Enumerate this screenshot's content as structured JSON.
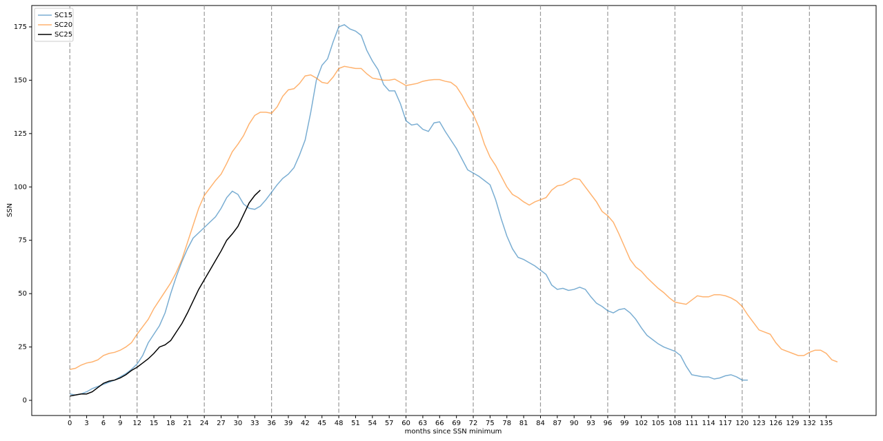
{
  "chart_data": {
    "type": "line",
    "x_label": "months since SSN minimum",
    "y_label": "SSN",
    "x": [
      0,
      1,
      2,
      3,
      4,
      5,
      6,
      7,
      8,
      9,
      10,
      11,
      12,
      13,
      14,
      15,
      16,
      17,
      18,
      19,
      20,
      21,
      22,
      23,
      24,
      25,
      26,
      27,
      28,
      29,
      30,
      31,
      32,
      33,
      34,
      35,
      36,
      37,
      38,
      39,
      40,
      41,
      42,
      43,
      44,
      45,
      46,
      47,
      48,
      49,
      50,
      51,
      52,
      53,
      54,
      55,
      56,
      57,
      58,
      59,
      60,
      61,
      62,
      63,
      64,
      65,
      66,
      67,
      68,
      69,
      70,
      71,
      72,
      73,
      74,
      75,
      76,
      77,
      78,
      79,
      80,
      81,
      82,
      83,
      84,
      85,
      86,
      87,
      88,
      89,
      90,
      91,
      92,
      93,
      94,
      95,
      96,
      97,
      98,
      99,
      100,
      101,
      102,
      103,
      104,
      105,
      106,
      107,
      108,
      109,
      110,
      111,
      112,
      113,
      114,
      115,
      116,
      117,
      118,
      119,
      120,
      121,
      122,
      123,
      124,
      125,
      126,
      127,
      128,
      129,
      130,
      131,
      132,
      133,
      134,
      135,
      136,
      137
    ],
    "series": [
      {
        "name": "SC15",
        "color": "#1f77b4",
        "alpha": 0.6,
        "values": [
          3,
          2.5,
          3,
          4,
          5.5,
          6.5,
          7.5,
          8.5,
          9.5,
          11,
          12.5,
          14.5,
          17,
          21,
          27,
          31,
          35,
          41,
          50,
          58,
          65,
          71,
          76,
          78.5,
          81,
          83.5,
          86,
          90,
          95,
          98,
          96.5,
          92,
          90,
          89.5,
          91,
          94,
          97.5,
          101,
          104,
          106,
          109,
          115,
          122,
          135,
          150,
          157,
          160,
          168,
          175,
          176,
          174,
          173,
          171,
          164,
          159,
          155,
          148,
          145,
          145,
          139,
          131,
          129,
          129.5,
          127,
          126,
          130,
          130.5,
          126,
          122,
          118,
          113,
          108,
          106.5,
          105,
          103,
          101,
          94,
          85,
          77,
          71,
          67,
          66,
          64.5,
          63,
          61,
          59,
          54,
          52,
          52.5,
          51.5,
          52,
          53,
          52,
          48.5,
          45.5,
          44,
          42,
          41,
          42.5,
          43,
          41,
          38,
          34,
          30.5,
          28.5,
          26.5,
          25,
          24,
          23,
          21,
          16,
          12,
          11.5,
          11,
          11,
          10,
          10.5,
          11.5,
          12,
          11,
          9.5,
          9.5,
          null,
          null,
          null,
          null,
          null,
          null,
          null,
          null,
          null,
          null,
          null,
          null,
          null,
          null,
          null,
          null
        ]
      },
      {
        "name": "SC20",
        "color": "#ff7f0e",
        "alpha": 0.6,
        "values": [
          14.5,
          15,
          16.5,
          17.5,
          18,
          19,
          21,
          22,
          22.5,
          23.5,
          25,
          27,
          31,
          34.5,
          38,
          43,
          47,
          51,
          55,
          60,
          66,
          74,
          82,
          90,
          96,
          99.5,
          103,
          106,
          111,
          116.5,
          120,
          124,
          129.5,
          133.5,
          135,
          135,
          134.5,
          137.5,
          142.5,
          145.5,
          146,
          148.5,
          152,
          152.5,
          151,
          149,
          148.5,
          151.5,
          155.5,
          156.5,
          156,
          155.5,
          155.5,
          153,
          151,
          150.5,
          150,
          150,
          150.5,
          149,
          147.5,
          148,
          148.5,
          149.5,
          150,
          150.3,
          150.3,
          149.5,
          149,
          147,
          143,
          138,
          134,
          128,
          120,
          114,
          110,
          105,
          100,
          96.5,
          95,
          93,
          91.5,
          93,
          94,
          95,
          98.5,
          100.5,
          101,
          102.5,
          104,
          103.5,
          100,
          96.5,
          93,
          88.5,
          86.5,
          83.5,
          78,
          72,
          66,
          62.5,
          60.5,
          57.5,
          55,
          52.5,
          50.5,
          48,
          46,
          45.5,
          45,
          47,
          49,
          48.5,
          48.5,
          49.5,
          49.5,
          49,
          48,
          46.5,
          44,
          40,
          36.5,
          33,
          32,
          31,
          27,
          24,
          23,
          22,
          21,
          21,
          22.5,
          23.5,
          23.5,
          22,
          19,
          18
        ]
      },
      {
        "name": "SC25",
        "color": "#000000",
        "alpha": 1,
        "values": [
          2,
          2.5,
          3,
          3,
          4,
          6,
          8,
          9,
          9.5,
          10.5,
          12,
          14,
          15.5,
          17.5,
          19.5,
          22,
          25,
          26,
          28,
          32,
          36,
          41,
          46.5,
          52,
          56.5,
          61,
          65.5,
          70,
          75,
          78,
          81.5,
          87,
          92.5,
          96,
          98.5,
          null,
          null,
          null,
          null,
          null,
          null,
          null,
          null,
          null,
          null,
          null,
          null,
          null,
          null,
          null,
          null,
          null,
          null,
          null,
          null,
          null,
          null,
          null,
          null,
          null,
          null,
          null,
          null,
          null,
          null,
          null,
          null,
          null,
          null,
          null,
          null,
          null,
          null,
          null,
          null,
          null,
          null,
          null,
          null,
          null,
          null,
          null,
          null,
          null,
          null,
          null,
          null,
          null,
          null,
          null,
          null,
          null,
          null,
          null,
          null,
          null,
          null,
          null,
          null,
          null,
          null,
          null,
          null,
          null,
          null,
          null,
          null,
          null,
          null,
          null,
          null,
          null,
          null,
          null,
          null,
          null,
          null,
          null,
          null,
          null,
          null,
          null,
          null,
          null,
          null,
          null,
          null,
          null,
          null,
          null,
          null,
          null,
          null,
          null,
          null,
          null,
          null,
          null
        ]
      }
    ],
    "xlim": [
      -6.8,
      143.9
    ],
    "ylim": [
      -7.1,
      185
    ],
    "xticks": [
      0,
      3,
      6,
      9,
      12,
      15,
      18,
      21,
      24,
      27,
      30,
      33,
      36,
      39,
      42,
      45,
      48,
      51,
      54,
      57,
      60,
      63,
      66,
      69,
      72,
      75,
      78,
      81,
      84,
      87,
      90,
      93,
      96,
      99,
      102,
      105,
      108,
      111,
      114,
      117,
      120,
      123,
      126,
      129,
      132,
      135
    ],
    "yticks": [
      0,
      25,
      50,
      75,
      100,
      125,
      150,
      175
    ],
    "vlines": [
      0,
      12,
      24,
      36,
      48,
      60,
      72,
      84,
      96,
      108,
      120,
      132
    ],
    "vline_color": "#999999",
    "legend": "upper left"
  }
}
